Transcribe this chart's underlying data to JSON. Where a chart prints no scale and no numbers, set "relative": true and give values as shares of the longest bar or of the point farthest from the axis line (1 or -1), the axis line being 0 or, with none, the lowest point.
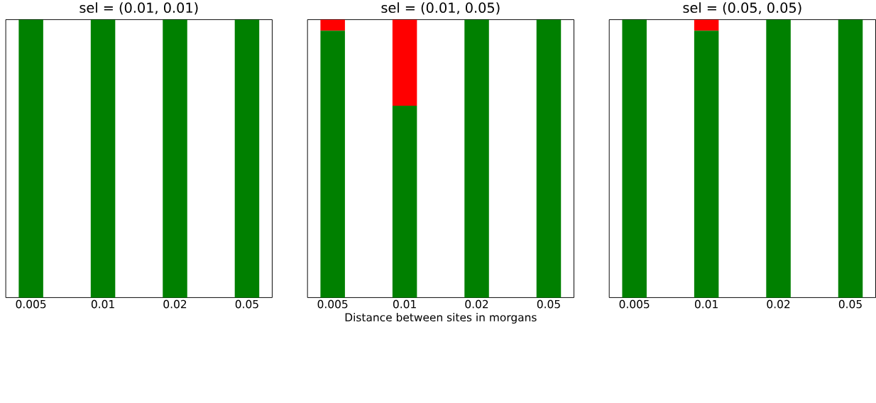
{
  "chart_data": [
    {
      "type": "bar",
      "title": "sel = (0.01, 0.01)",
      "categories": [
        "0.005",
        "0.01",
        "0.02",
        "0.05"
      ],
      "stacked": true,
      "relative": true,
      "series": [
        {
          "color": "#008000",
          "values": [
            1,
            1,
            1,
            1
          ]
        },
        {
          "color": "#ff0000",
          "values": [
            0,
            0,
            0,
            0
          ]
        }
      ]
    },
    {
      "type": "bar",
      "title": "sel = (0.01, 0.05)",
      "xlabel": "Distance between sites in morgans",
      "categories": [
        "0.005",
        "0.01",
        "0.02",
        "0.05"
      ],
      "stacked": true,
      "relative": true,
      "series": [
        {
          "color": "#008000",
          "values": [
            0.96,
            0.69,
            1,
            1
          ]
        },
        {
          "color": "#ff0000",
          "values": [
            0.04,
            0.31,
            0,
            0
          ]
        }
      ]
    },
    {
      "type": "bar",
      "title": "sel = (0.05, 0.05)",
      "categories": [
        "0.005",
        "0.01",
        "0.02",
        "0.05"
      ],
      "stacked": true,
      "relative": true,
      "series": [
        {
          "color": "#008000",
          "values": [
            1,
            0.96,
            1,
            1
          ]
        },
        {
          "color": "#ff0000",
          "values": [
            0,
            0.04,
            0,
            0
          ]
        }
      ]
    }
  ]
}
